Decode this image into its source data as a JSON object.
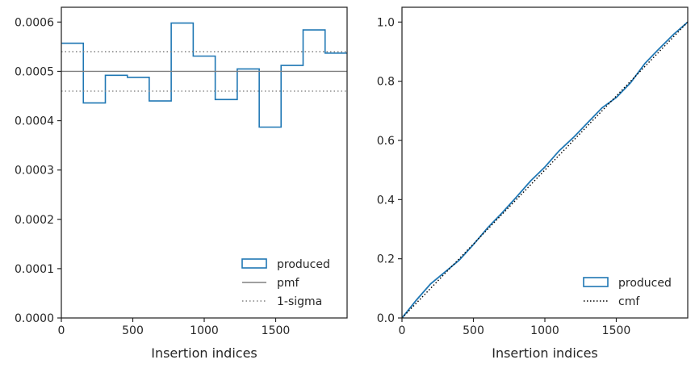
{
  "chart_data": [
    {
      "type": "histogram",
      "xlabel": "Insertion indices",
      "ylabel": "",
      "xlim": [
        0,
        2000
      ],
      "ylim": [
        0,
        0.00063
      ],
      "xticks": [
        0,
        500,
        1000,
        1500
      ],
      "yticks": [
        0.0,
        0.0001,
        0.0002,
        0.0003,
        0.0004,
        0.0005,
        0.0006
      ],
      "ytick_labels": [
        "0.0000",
        "0.0001",
        "0.0002",
        "0.0003",
        "0.0004",
        "0.0005",
        "0.0006"
      ],
      "bin_edges": [
        0,
        154,
        308,
        462,
        615,
        769,
        923,
        1077,
        1231,
        1385,
        1538,
        1692,
        1846,
        2000
      ],
      "series": [
        {
          "name": "produced",
          "style": "step",
          "color": "#1f77b4",
          "values": [
            0.000557,
            0.000436,
            0.000492,
            0.000488,
            0.00044,
            0.000598,
            0.000531,
            0.000443,
            0.000505,
            0.000387,
            0.000512,
            0.000584,
            0.000537
          ]
        },
        {
          "name": "pmf",
          "style": "solid",
          "color": "#808080",
          "y": 0.0005
        },
        {
          "name": "1-sigma",
          "style": "dotted",
          "color": "#808080",
          "y": [
            0.00046,
            0.00054
          ]
        }
      ],
      "legend": {
        "position": "lower right",
        "entries": [
          "produced",
          "pmf",
          "1-sigma"
        ]
      }
    },
    {
      "type": "line",
      "xlabel": "Insertion indices",
      "ylabel": "",
      "xlim": [
        0,
        2000
      ],
      "ylim": [
        0,
        1.05
      ],
      "xticks": [
        0,
        500,
        1000,
        1500
      ],
      "yticks": [
        0.0,
        0.2,
        0.4,
        0.6,
        0.8,
        1.0
      ],
      "ytick_labels": [
        "0.0",
        "0.2",
        "0.4",
        "0.6",
        "0.8",
        "1.0"
      ],
      "series": [
        {
          "name": "produced",
          "style": "solid",
          "color": "#1f77b4",
          "x": [
            0,
            100,
            200,
            300,
            400,
            500,
            600,
            700,
            800,
            900,
            1000,
            1100,
            1200,
            1300,
            1400,
            1500,
            1600,
            1700,
            1800,
            1900,
            2000
          ],
          "y": [
            0,
            0.06,
            0.115,
            0.155,
            0.195,
            0.248,
            0.305,
            0.355,
            0.408,
            0.463,
            0.51,
            0.565,
            0.61,
            0.66,
            0.71,
            0.745,
            0.795,
            0.86,
            0.91,
            0.958,
            1.0
          ]
        },
        {
          "name": "cmf",
          "style": "dotted",
          "color": "#000000",
          "x": [
            0,
            2000
          ],
          "y": [
            0,
            1
          ]
        }
      ],
      "legend": {
        "position": "lower right",
        "entries": [
          "produced",
          "cmf"
        ]
      }
    }
  ]
}
